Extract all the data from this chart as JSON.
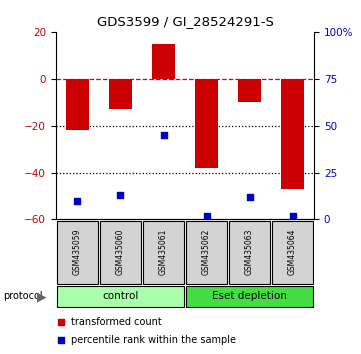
{
  "title": "GDS3599 / GI_28524291-S",
  "samples": [
    "GSM435059",
    "GSM435060",
    "GSM435061",
    "GSM435062",
    "GSM435063",
    "GSM435064"
  ],
  "red_values": [
    -22,
    -13,
    15,
    -38,
    -10,
    -47
  ],
  "blue_percentile": [
    10,
    13,
    45,
    2,
    12,
    2
  ],
  "ylim_left": [
    -60,
    20
  ],
  "ylim_right": [
    0,
    100
  ],
  "yticks_left": [
    -60,
    -40,
    -20,
    0,
    20
  ],
  "yticks_right": [
    0,
    25,
    50,
    75,
    100
  ],
  "ytick_labels_right": [
    "0",
    "25",
    "50",
    "75",
    "100%"
  ],
  "groups": [
    {
      "label": "control",
      "samples": [
        0,
        1,
        2
      ],
      "color": "#aaffaa"
    },
    {
      "label": "Eset depletion",
      "samples": [
        3,
        4,
        5
      ],
      "color": "#44dd44"
    }
  ],
  "bar_color": "#cc0000",
  "dot_color": "#0000cc",
  "background_color": "#ffffff",
  "dashed_line_color": "#cc0000",
  "dotted_line_color": "#000000",
  "tick_color_left": "#cc0000",
  "tick_color_right": "#0000cc",
  "title_fontsize": 9.5
}
